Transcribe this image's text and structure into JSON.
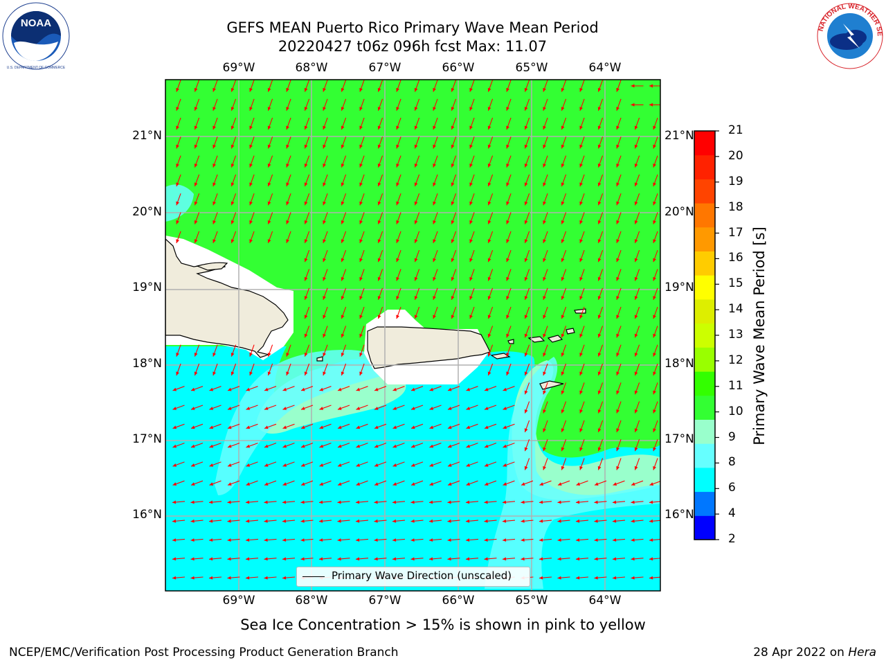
{
  "header": {
    "title": "GEFS MEAN Puerto Rico Primary Wave Mean Period",
    "subtitle": "20220427 t06z 096h fcst   Max: 11.07"
  },
  "logos": {
    "left": "noaa-logo",
    "right": "national-weather-service-logo",
    "left_text": "NATIONAL OCEANIC AND ATMOSPHERIC ADMINISTRATION · U.S. DEPARTMENT OF COMMERCE · NOAA",
    "right_text": "NATIONAL WEATHER SERVICE"
  },
  "map": {
    "lon_labels": [
      "69°W",
      "68°W",
      "67°W",
      "66°W",
      "65°W",
      "64°W"
    ],
    "lat_labels": [
      "21°N",
      "20°N",
      "19°N",
      "18°N",
      "17°N",
      "16°N"
    ],
    "legend_label": "Primary Wave Direction (unscaled)",
    "arrow_color": "#ff0000",
    "land_color": "#f0ecdc",
    "colors": {
      "green_10_11": "#33ff33",
      "aqua_9_10": "#99ffcc",
      "lightcyan_8_9": "#66ffff",
      "cyan_6_8": "#00ffff"
    }
  },
  "colorbar": {
    "label": "Primary Wave Mean Period [s]",
    "ticks": [
      "21",
      "20",
      "19",
      "18",
      "17",
      "16",
      "15",
      "14",
      "13",
      "12",
      "11",
      "10",
      "9",
      "8",
      "6",
      "4",
      "2"
    ],
    "colors_bottom_to_top": [
      "#0000ff",
      "#0077ff",
      "#00ffff",
      "#66ffff",
      "#99ffcc",
      "#33ff33",
      "#33ff00",
      "#99ff00",
      "#ccff00",
      "#ddee00",
      "#ffff00",
      "#ffcc00",
      "#ff9900",
      "#ff7700",
      "#ff4400",
      "#ff2200",
      "#ff0000"
    ]
  },
  "notes": {
    "sea_ice": "Sea Ice Concentration > 15% is shown in pink to yellow"
  },
  "footer": {
    "left": "NCEP/EMC/Verification Post Processing Product Generation Branch",
    "right_date": "28 Apr 2022 on ",
    "right_machine": "Hera"
  }
}
